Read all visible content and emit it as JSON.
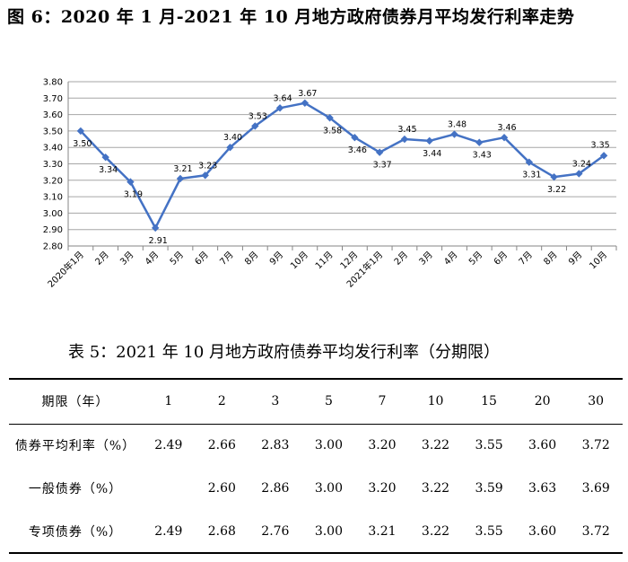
{
  "figure_title": "图 6：2020 年 1 月-2021 年 10 月地方政府债券月平均发行利率走势",
  "chart_data": {
    "type": "line",
    "categories": [
      "2020年1月",
      "2月",
      "3月",
      "4月",
      "5月",
      "6月",
      "7月",
      "8月",
      "9月",
      "10月",
      "11月",
      "12月",
      "2021年1月",
      "2月",
      "3月",
      "4月",
      "5月",
      "6月",
      "7月",
      "8月",
      "9月",
      "10月"
    ],
    "values": [
      3.5,
      3.34,
      3.19,
      2.91,
      3.21,
      3.23,
      3.4,
      3.53,
      3.64,
      3.67,
      3.58,
      3.46,
      3.37,
      3.45,
      3.44,
      3.48,
      3.43,
      3.46,
      3.31,
      3.22,
      3.24,
      3.35
    ],
    "data_labels": [
      "3.50",
      "3.34",
      "3.19",
      "2.91",
      "3.21",
      "3.23",
      "3.40",
      "3.53",
      "3.64",
      "3.67",
      "3.58",
      "3.46",
      "3.37",
      "3.45",
      "3.44",
      "3.48",
      "3.43",
      "3.46",
      "3.31",
      "3.22",
      "3.24",
      "3.35"
    ],
    "ylim": [
      2.8,
      3.8
    ],
    "yticks": [
      "2.80",
      "2.90",
      "3.00",
      "3.10",
      "3.20",
      "3.30",
      "3.40",
      "3.50",
      "3.60",
      "3.70",
      "3.80"
    ],
    "grid": true,
    "line_color": "#4472c4",
    "marker": "diamond"
  },
  "table": {
    "title": "表 5：2021 年 10 月地方政府债券平均发行利率（分期限）",
    "header_label": "期限（年）",
    "terms": [
      "1",
      "2",
      "3",
      "5",
      "7",
      "10",
      "15",
      "20",
      "30"
    ],
    "rows": [
      {
        "label": "债券平均利率（%）",
        "values": [
          "2.49",
          "2.66",
          "2.83",
          "3.00",
          "3.20",
          "3.22",
          "3.55",
          "3.60",
          "3.72"
        ]
      },
      {
        "label": "一般债券（%）",
        "values": [
          "",
          "2.60",
          "2.86",
          "3.00",
          "3.20",
          "3.22",
          "3.59",
          "3.63",
          "3.69"
        ]
      },
      {
        "label": "专项债券（%）",
        "values": [
          "2.49",
          "2.68",
          "2.76",
          "3.00",
          "3.21",
          "3.22",
          "3.55",
          "3.60",
          "3.72"
        ]
      }
    ]
  }
}
